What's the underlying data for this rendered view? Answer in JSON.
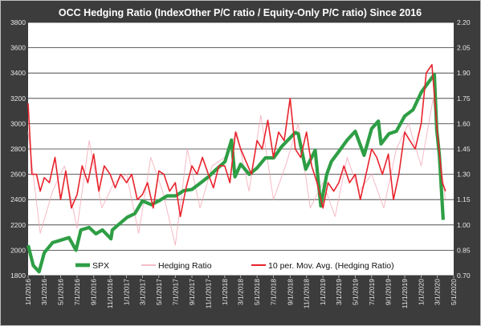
{
  "chart_data": {
    "type": "line",
    "title": "OCC  Hedging Ratio (IndexOther P/C ratio / Equity-Only P/C ratio) Since 2016",
    "xlabel": "",
    "ylabel": "",
    "y_left_lim": [
      1800,
      3800
    ],
    "y_left_ticks": [
      "1800",
      "2000",
      "2200",
      "2400",
      "2600",
      "2800",
      "3000",
      "3200",
      "3400",
      "3600",
      "3800"
    ],
    "y_right_lim": [
      0.7,
      2.2
    ],
    "y_right_ticks": [
      "0.70",
      "0.85",
      "1.00",
      "1.15",
      "1.30",
      "1.45",
      "1.60",
      "1.75",
      "1.90",
      "2.05",
      "2.20"
    ],
    "x_lim": [
      "2016-01-01",
      "2020-05-01"
    ],
    "x_tick_labels": [
      "1/1/2016",
      "3/1/2016",
      "5/1/2016",
      "7/1/2016",
      "9/1/2016",
      "11/1/2016",
      "1/1/2017",
      "3/1/2017",
      "5/1/2017",
      "7/1/2017",
      "9/1/2017",
      "11/1/2017",
      "1/1/2018",
      "3/1/2018",
      "5/1/2018",
      "7/1/2018",
      "9/1/2018",
      "11/1/2018",
      "1/1/2019",
      "3/1/2019",
      "5/1/2019",
      "7/1/2019",
      "9/1/2019",
      "11/1/2019",
      "1/1/2020",
      "3/1/2020",
      "5/1/2020"
    ],
    "grid": true,
    "legend_position": "bottom",
    "series": [
      {
        "name": "SPX",
        "axis": "left",
        "color": "#2e9e45",
        "x": [
          "2016-01-01",
          "2016-01-20",
          "2016-02-11",
          "2016-03-01",
          "2016-04-01",
          "2016-05-02",
          "2016-06-01",
          "2016-06-27",
          "2016-07-15",
          "2016-08-15",
          "2016-09-09",
          "2016-10-03",
          "2016-11-04",
          "2016-11-09",
          "2016-12-01",
          "2017-01-03",
          "2017-02-01",
          "2017-03-01",
          "2017-04-03",
          "2017-05-01",
          "2017-06-01",
          "2017-07-03",
          "2017-08-01",
          "2017-09-01",
          "2017-10-02",
          "2017-11-01",
          "2017-12-01",
          "2018-01-02",
          "2018-01-26",
          "2018-02-08",
          "2018-03-01",
          "2018-04-02",
          "2018-05-01",
          "2018-06-01",
          "2018-07-02",
          "2018-08-01",
          "2018-09-20",
          "2018-10-01",
          "2018-10-29",
          "2018-12-03",
          "2018-12-24",
          "2019-01-15",
          "2019-02-01",
          "2019-03-01",
          "2019-04-01",
          "2019-05-01",
          "2019-06-03",
          "2019-07-01",
          "2019-07-26",
          "2019-08-05",
          "2019-09-03",
          "2019-10-01",
          "2019-11-01",
          "2019-12-02",
          "2020-01-02",
          "2020-02-19",
          "2020-02-28",
          "2020-03-09",
          "2020-03-23"
        ],
        "values": [
          2040,
          1880,
          1830,
          1980,
          2060,
          2080,
          2100,
          2000,
          2160,
          2180,
          2130,
          2160,
          2090,
          2160,
          2200,
          2260,
          2290,
          2390,
          2360,
          2390,
          2430,
          2430,
          2470,
          2480,
          2530,
          2580,
          2640,
          2700,
          2870,
          2580,
          2680,
          2600,
          2650,
          2730,
          2730,
          2820,
          2930,
          2920,
          2640,
          2790,
          2350,
          2600,
          2700,
          2780,
          2870,
          2940,
          2750,
          2960,
          3020,
          2840,
          2920,
          2940,
          3060,
          3110,
          3250,
          3390,
          2950,
          2750,
          2240
        ]
      },
      {
        "name": "Hedging Ratio",
        "axis": "right",
        "color": "#f2a9b6",
        "x": [
          "2016-01-01",
          "2016-02-15",
          "2016-04-01",
          "2016-05-15",
          "2016-07-01",
          "2016-08-15",
          "2016-10-01",
          "2016-11-15",
          "2017-01-01",
          "2017-02-15",
          "2017-04-01",
          "2017-05-15",
          "2017-07-01",
          "2017-08-15",
          "2017-10-01",
          "2017-11-15",
          "2018-01-01",
          "2018-02-15",
          "2018-04-01",
          "2018-05-15",
          "2018-07-01",
          "2018-08-15",
          "2018-10-01",
          "2018-11-15",
          "2019-01-01",
          "2019-02-15",
          "2019-04-01",
          "2019-05-15",
          "2019-07-01",
          "2019-08-15",
          "2019-10-01",
          "2019-11-15",
          "2020-01-01",
          "2020-02-15",
          "2020-03-31"
        ],
        "values": [
          1.55,
          0.95,
          1.2,
          1.35,
          0.98,
          1.5,
          1.1,
          1.25,
          1.3,
          0.95,
          1.4,
          1.2,
          0.88,
          1.45,
          1.1,
          1.35,
          1.4,
          1.55,
          1.2,
          1.65,
          1.15,
          1.35,
          1.6,
          1.1,
          1.25,
          1.05,
          1.4,
          1.2,
          1.3,
          1.1,
          1.45,
          1.6,
          1.35,
          1.75,
          1.15
        ]
      },
      {
        "name": "10 per. Mov. Avg. (Hedging Ratio)",
        "axis": "right",
        "color": "#e8232c",
        "x": [
          "2016-01-01",
          "2016-01-15",
          "2016-02-01",
          "2016-02-15",
          "2016-03-01",
          "2016-03-20",
          "2016-04-10",
          "2016-05-01",
          "2016-05-20",
          "2016-06-10",
          "2016-07-01",
          "2016-07-20",
          "2016-08-10",
          "2016-09-01",
          "2016-09-20",
          "2016-10-10",
          "2016-11-01",
          "2016-11-20",
          "2016-12-10",
          "2017-01-01",
          "2017-01-20",
          "2017-02-10",
          "2017-03-01",
          "2017-03-20",
          "2017-04-10",
          "2017-05-01",
          "2017-05-20",
          "2017-06-10",
          "2017-07-01",
          "2017-07-20",
          "2017-08-10",
          "2017-09-01",
          "2017-09-20",
          "2017-10-10",
          "2017-11-01",
          "2017-11-20",
          "2017-12-10",
          "2018-01-01",
          "2018-01-20",
          "2018-02-10",
          "2018-03-01",
          "2018-03-20",
          "2018-04-10",
          "2018-05-01",
          "2018-05-20",
          "2018-06-10",
          "2018-07-01",
          "2018-07-20",
          "2018-08-10",
          "2018-09-01",
          "2018-09-20",
          "2018-10-10",
          "2018-11-01",
          "2018-11-20",
          "2018-12-10",
          "2019-01-01",
          "2019-01-20",
          "2019-02-10",
          "2019-03-01",
          "2019-03-20",
          "2019-04-10",
          "2019-05-01",
          "2019-05-20",
          "2019-06-10",
          "2019-07-01",
          "2019-07-20",
          "2019-08-10",
          "2019-09-01",
          "2019-09-20",
          "2019-10-10",
          "2019-11-01",
          "2019-11-20",
          "2019-12-10",
          "2020-01-01",
          "2020-01-20",
          "2020-02-10",
          "2020-03-01",
          "2020-03-20",
          "2020-04-01"
        ],
        "values": [
          1.72,
          1.3,
          1.3,
          1.2,
          1.28,
          1.25,
          1.4,
          1.15,
          1.32,
          1.1,
          1.18,
          1.35,
          1.25,
          1.42,
          1.2,
          1.35,
          1.3,
          1.22,
          1.3,
          1.25,
          1.3,
          1.15,
          1.18,
          1.25,
          1.1,
          1.32,
          1.3,
          1.2,
          1.25,
          1.05,
          1.22,
          1.35,
          1.3,
          1.4,
          1.3,
          1.22,
          1.35,
          1.35,
          1.25,
          1.55,
          1.45,
          1.38,
          1.3,
          1.5,
          1.45,
          1.62,
          1.4,
          1.55,
          1.5,
          1.75,
          1.45,
          1.4,
          1.55,
          1.35,
          1.25,
          1.1,
          1.25,
          1.2,
          1.25,
          1.35,
          1.25,
          1.3,
          1.15,
          1.3,
          1.45,
          1.4,
          1.3,
          1.42,
          1.15,
          1.3,
          1.55,
          1.5,
          1.45,
          1.6,
          1.9,
          1.95,
          1.55,
          1.25,
          1.2
        ]
      }
    ]
  }
}
